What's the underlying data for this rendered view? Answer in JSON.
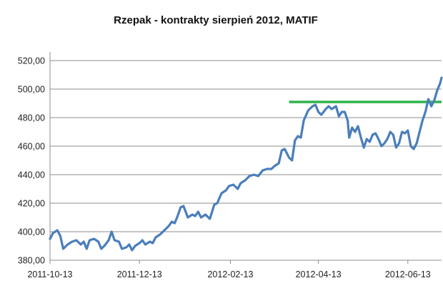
{
  "chart_data": {
    "type": "line",
    "title": "Rzepak - kontrakty sierpień 2012, MATIF",
    "xlabel": "",
    "ylabel": "",
    "ylim": [
      380,
      520
    ],
    "xlim": [
      "2011-10-13",
      "2012-07-06"
    ],
    "y_ticks": [
      {
        "value": 380,
        "label": "380,00"
      },
      {
        "value": 400,
        "label": "400,00"
      },
      {
        "value": 420,
        "label": "420,00"
      },
      {
        "value": 440,
        "label": "440,00"
      },
      {
        "value": 460,
        "label": "460,00"
      },
      {
        "value": 480,
        "label": "480,00"
      },
      {
        "value": 500,
        "label": "500,00"
      },
      {
        "value": 520,
        "label": "520,00"
      }
    ],
    "x_ticks": [
      "2011-10-13",
      "2011-12-13",
      "2012-02-13",
      "2012-04-13",
      "2012-06-13"
    ],
    "grid": "horizontal",
    "legend": "none",
    "series": [
      {
        "color": "#4a7ebb",
        "points": [
          [
            "2011-10-13",
            395
          ],
          [
            "2011-10-15",
            399
          ],
          [
            "2011-10-18",
            401
          ],
          [
            "2011-10-20",
            397
          ],
          [
            "2011-10-22",
            388
          ],
          [
            "2011-10-25",
            391
          ],
          [
            "2011-10-28",
            393
          ],
          [
            "2011-10-31",
            394
          ],
          [
            "2011-11-03",
            391
          ],
          [
            "2011-11-05",
            393
          ],
          [
            "2011-11-07",
            388
          ],
          [
            "2011-11-09",
            394
          ],
          [
            "2011-11-12",
            395
          ],
          [
            "2011-11-15",
            393
          ],
          [
            "2011-11-17",
            388
          ],
          [
            "2011-11-19",
            390
          ],
          [
            "2011-11-22",
            394
          ],
          [
            "2011-11-24",
            400
          ],
          [
            "2011-11-26",
            394
          ],
          [
            "2011-11-29",
            393
          ],
          [
            "2011-12-01",
            388
          ],
          [
            "2011-12-04",
            389
          ],
          [
            "2011-12-06",
            391
          ],
          [
            "2011-12-08",
            387
          ],
          [
            "2011-12-10",
            390
          ],
          [
            "2011-12-13",
            392
          ],
          [
            "2011-12-15",
            394
          ],
          [
            "2011-12-17",
            391
          ],
          [
            "2011-12-20",
            393
          ],
          [
            "2011-12-22",
            392
          ],
          [
            "2011-12-24",
            396
          ],
          [
            "2011-12-27",
            398
          ],
          [
            "2011-12-30",
            401
          ],
          [
            "2012-01-02",
            404
          ],
          [
            "2012-01-04",
            407
          ],
          [
            "2012-01-06",
            406
          ],
          [
            "2012-01-08",
            411
          ],
          [
            "2012-01-10",
            417
          ],
          [
            "2012-01-12",
            418
          ],
          [
            "2012-01-15",
            410
          ],
          [
            "2012-01-18",
            412
          ],
          [
            "2012-01-20",
            411
          ],
          [
            "2012-01-22",
            414
          ],
          [
            "2012-01-24",
            410
          ],
          [
            "2012-01-27",
            412
          ],
          [
            "2012-01-30",
            409
          ],
          [
            "2012-02-02",
            419
          ],
          [
            "2012-02-04",
            420
          ],
          [
            "2012-02-07",
            427
          ],
          [
            "2012-02-10",
            429
          ],
          [
            "2012-02-12",
            432
          ],
          [
            "2012-02-15",
            433
          ],
          [
            "2012-02-18",
            430
          ],
          [
            "2012-02-20",
            434
          ],
          [
            "2012-02-23",
            436
          ],
          [
            "2012-02-26",
            439
          ],
          [
            "2012-02-29",
            440
          ],
          [
            "2012-03-03",
            439
          ],
          [
            "2012-03-06",
            443
          ],
          [
            "2012-03-09",
            444
          ],
          [
            "2012-03-12",
            444
          ],
          [
            "2012-03-14",
            446
          ],
          [
            "2012-03-17",
            448
          ],
          [
            "2012-03-19",
            457
          ],
          [
            "2012-03-21",
            458
          ],
          [
            "2012-03-24",
            452
          ],
          [
            "2012-03-26",
            450
          ],
          [
            "2012-03-28",
            464
          ],
          [
            "2012-03-30",
            467
          ],
          [
            "2012-04-01",
            466
          ],
          [
            "2012-04-03",
            478
          ],
          [
            "2012-04-06",
            485
          ],
          [
            "2012-04-09",
            488
          ],
          [
            "2012-04-11",
            489
          ],
          [
            "2012-04-13",
            484
          ],
          [
            "2012-04-15",
            482
          ],
          [
            "2012-04-18",
            486
          ],
          [
            "2012-04-20",
            488
          ],
          [
            "2012-04-22",
            486
          ],
          [
            "2012-04-25",
            488
          ],
          [
            "2012-04-27",
            481
          ],
          [
            "2012-04-29",
            484
          ],
          [
            "2012-05-01",
            484
          ],
          [
            "2012-05-03",
            478
          ],
          [
            "2012-05-04",
            466
          ],
          [
            "2012-05-06",
            473
          ],
          [
            "2012-05-08",
            470
          ],
          [
            "2012-05-10",
            474
          ],
          [
            "2012-05-12",
            466
          ],
          [
            "2012-05-14",
            459
          ],
          [
            "2012-05-16",
            465
          ],
          [
            "2012-05-18",
            463
          ],
          [
            "2012-05-20",
            468
          ],
          [
            "2012-05-22",
            469
          ],
          [
            "2012-05-24",
            465
          ],
          [
            "2012-05-26",
            460
          ],
          [
            "2012-05-28",
            462
          ],
          [
            "2012-05-30",
            465
          ],
          [
            "2012-06-01",
            470
          ],
          [
            "2012-06-03",
            468
          ],
          [
            "2012-06-05",
            459
          ],
          [
            "2012-06-07",
            462
          ],
          [
            "2012-06-09",
            470
          ],
          [
            "2012-06-11",
            469
          ],
          [
            "2012-06-13",
            471
          ],
          [
            "2012-06-15",
            460
          ],
          [
            "2012-06-17",
            458
          ],
          [
            "2012-06-19",
            462
          ],
          [
            "2012-06-21",
            470
          ],
          [
            "2012-06-23",
            478
          ],
          [
            "2012-06-25",
            484
          ],
          [
            "2012-06-27",
            493
          ],
          [
            "2012-06-29",
            488
          ],
          [
            "2012-07-01",
            492
          ],
          [
            "2012-07-03",
            499
          ],
          [
            "2012-07-05",
            504
          ],
          [
            "2012-07-06",
            508
          ]
        ]
      }
    ],
    "annotations": [
      {
        "type": "horizontal-line",
        "value": 491,
        "x_start": "2012-03-24",
        "x_end": "2012-07-06",
        "color": "#2fb34a"
      }
    ]
  }
}
